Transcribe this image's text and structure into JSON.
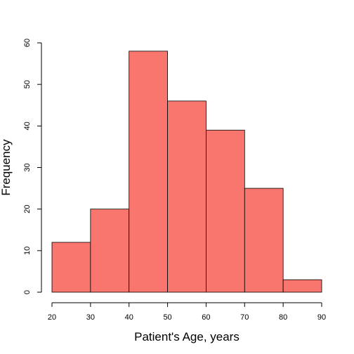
{
  "chart_data": {
    "type": "bar",
    "subtype": "histogram",
    "bins": [
      [
        20,
        30
      ],
      [
        30,
        40
      ],
      [
        40,
        50
      ],
      [
        50,
        60
      ],
      [
        60,
        70
      ],
      [
        70,
        80
      ],
      [
        80,
        90
      ]
    ],
    "values": [
      12,
      20,
      58,
      46,
      39,
      25,
      3
    ],
    "xlabel": "Patient's Age, years",
    "ylabel": "Frequency",
    "xlim": [
      20,
      90
    ],
    "ylim": [
      0,
      60
    ],
    "xticks": [
      20,
      30,
      40,
      50,
      60,
      70,
      80,
      90
    ],
    "yticks": [
      0,
      10,
      20,
      30,
      40,
      50,
      60
    ],
    "grid": false,
    "bar_color": "#f8766d"
  }
}
